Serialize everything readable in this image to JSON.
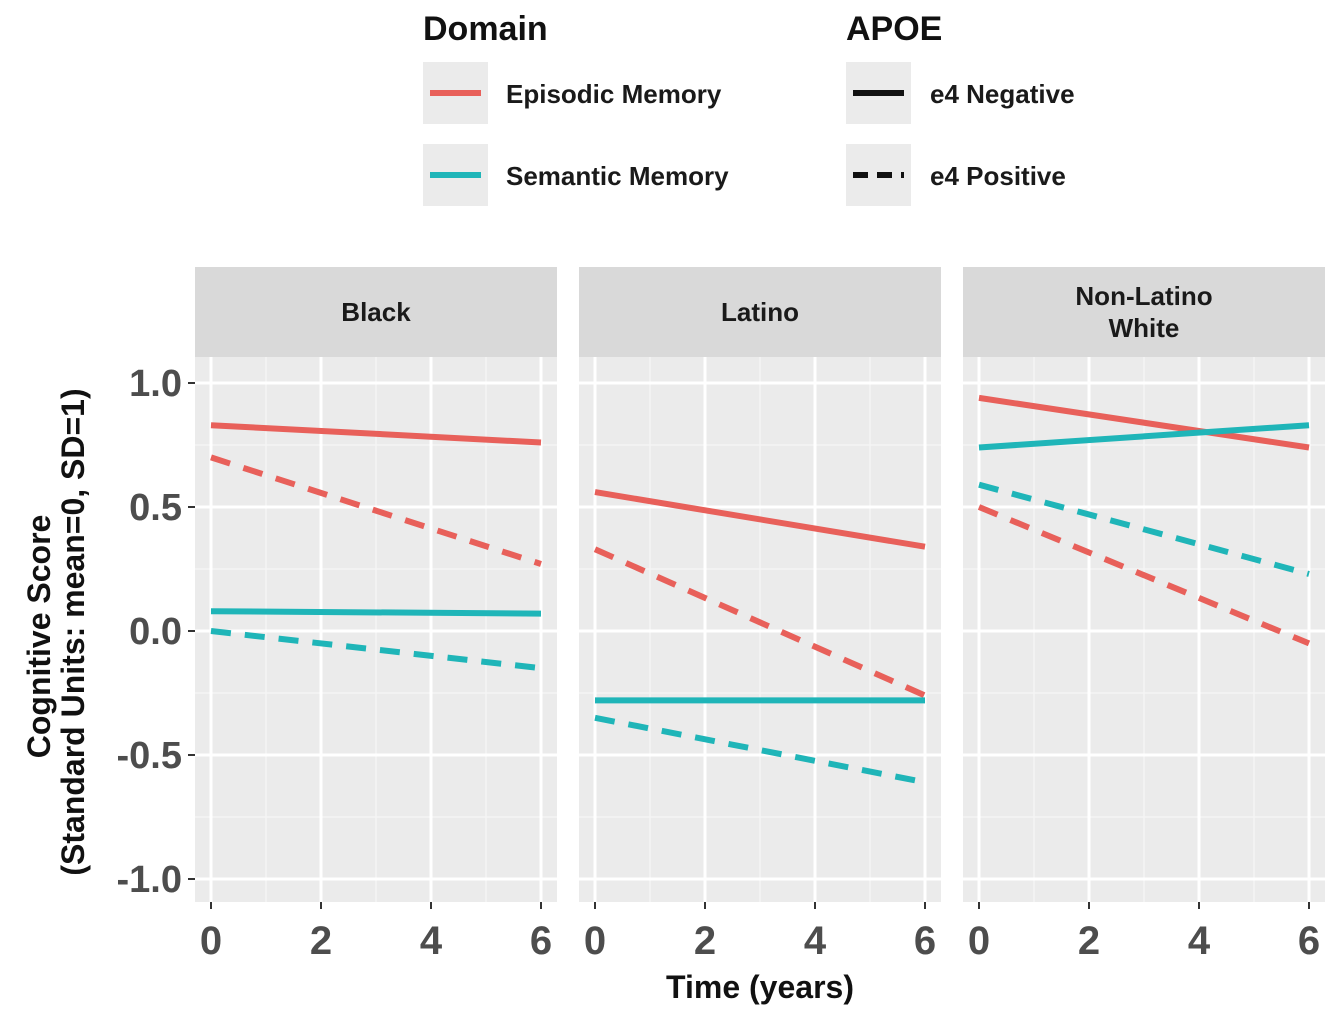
{
  "chart_data": {
    "type": "line",
    "xlabel": "Time (years)",
    "ylabel": [
      "Cognitive Score",
      "(Standard Units: mean=0, SD=1)"
    ],
    "xlim": [
      0,
      6
    ],
    "ylim": [
      -1.0,
      1.0
    ],
    "x_ticks": [
      0,
      2,
      4,
      6
    ],
    "y_ticks": [
      1.0,
      0.5,
      0.0,
      -0.5,
      -1.0
    ],
    "y_tick_labels": [
      "1.0",
      "0.5",
      "0.0",
      "-0.5",
      "-1.0"
    ],
    "grid": true,
    "legend": {
      "placement": "top",
      "groups": [
        {
          "title": "Domain",
          "entries": [
            {
              "label": "Episodic Memory",
              "color": "#E8605A"
            },
            {
              "label": "Semantic Memory",
              "color": "#1FB5B8"
            }
          ]
        },
        {
          "title": "APOE",
          "entries": [
            {
              "label": "e4 Negative",
              "linestyle": "solid"
            },
            {
              "label": "e4 Positive",
              "linestyle": "dashed"
            }
          ]
        }
      ]
    },
    "panels": [
      {
        "strip": [
          "Black"
        ],
        "series": [
          {
            "domain": "Episodic Memory",
            "apoe": "e4 Negative",
            "x": [
              0,
              6
            ],
            "y": [
              0.83,
              0.76
            ]
          },
          {
            "domain": "Episodic Memory",
            "apoe": "e4 Positive",
            "x": [
              0,
              6
            ],
            "y": [
              0.7,
              0.27
            ]
          },
          {
            "domain": "Semantic Memory",
            "apoe": "e4 Negative",
            "x": [
              0,
              6
            ],
            "y": [
              0.08,
              0.07
            ]
          },
          {
            "domain": "Semantic Memory",
            "apoe": "e4 Positive",
            "x": [
              0,
              6
            ],
            "y": [
              0.0,
              -0.15
            ]
          }
        ]
      },
      {
        "strip": [
          "Latino"
        ],
        "series": [
          {
            "domain": "Episodic Memory",
            "apoe": "e4 Negative",
            "x": [
              0,
              6
            ],
            "y": [
              0.56,
              0.34
            ]
          },
          {
            "domain": "Episodic Memory",
            "apoe": "e4 Positive",
            "x": [
              0,
              6
            ],
            "y": [
              0.33,
              -0.26
            ]
          },
          {
            "domain": "Semantic Memory",
            "apoe": "e4 Negative",
            "x": [
              0,
              6
            ],
            "y": [
              -0.28,
              -0.28
            ]
          },
          {
            "domain": "Semantic Memory",
            "apoe": "e4 Positive",
            "x": [
              0,
              6
            ],
            "y": [
              -0.35,
              -0.61
            ]
          }
        ]
      },
      {
        "strip": [
          "Non-Latino",
          "White"
        ],
        "series": [
          {
            "domain": "Episodic Memory",
            "apoe": "e4 Negative",
            "x": [
              0,
              6
            ],
            "y": [
              0.94,
              0.74
            ]
          },
          {
            "domain": "Semantic Memory",
            "apoe": "e4 Negative",
            "x": [
              0,
              6
            ],
            "y": [
              0.74,
              0.83
            ]
          },
          {
            "domain": "Semantic Memory",
            "apoe": "e4 Positive",
            "x": [
              0,
              6
            ],
            "y": [
              0.59,
              0.23
            ]
          },
          {
            "domain": "Episodic Memory",
            "apoe": "e4 Positive",
            "x": [
              0,
              6
            ],
            "y": [
              0.5,
              -0.05
            ]
          }
        ]
      }
    ]
  }
}
